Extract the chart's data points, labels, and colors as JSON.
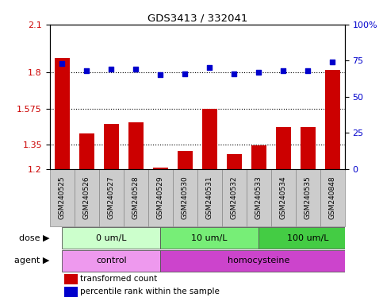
{
  "title": "GDS3413 / 332041",
  "samples": [
    "GSM240525",
    "GSM240526",
    "GSM240527",
    "GSM240528",
    "GSM240529",
    "GSM240530",
    "GSM240531",
    "GSM240532",
    "GSM240533",
    "GSM240534",
    "GSM240535",
    "GSM240848"
  ],
  "transformed_count": [
    1.89,
    1.42,
    1.48,
    1.49,
    1.21,
    1.31,
    1.575,
    1.29,
    1.345,
    1.46,
    1.46,
    1.815
  ],
  "percentile_rank": [
    73,
    68,
    69,
    69,
    65,
    66,
    70,
    66,
    67,
    68,
    68,
    74
  ],
  "ylim_left": [
    1.2,
    2.1
  ],
  "ylim_right": [
    0,
    100
  ],
  "yticks_left": [
    1.2,
    1.35,
    1.575,
    1.8,
    2.1
  ],
  "ytick_labels_left": [
    "1.2",
    "1.35",
    "1.575",
    "1.8",
    "2.1"
  ],
  "yticks_right": [
    0,
    25,
    50,
    75,
    100
  ],
  "ytick_labels_right": [
    "0",
    "25",
    "50",
    "75",
    "100%"
  ],
  "hlines": [
    1.8,
    1.575,
    1.35
  ],
  "bar_color": "#cc0000",
  "scatter_color": "#0000cc",
  "bar_width": 0.6,
  "dose_groups": [
    {
      "label": "0 um/L",
      "start": 0,
      "end": 4,
      "color": "#ccffcc"
    },
    {
      "label": "10 um/L",
      "start": 4,
      "end": 8,
      "color": "#77ee77"
    },
    {
      "label": "100 um/L",
      "start": 8,
      "end": 12,
      "color": "#44cc44"
    }
  ],
  "agent_groups": [
    {
      "label": "control",
      "start": 0,
      "end": 4,
      "color": "#ee99ee"
    },
    {
      "label": "homocysteine",
      "start": 4,
      "end": 12,
      "color": "#cc44cc"
    }
  ],
  "dose_label": "dose",
  "agent_label": "agent",
  "legend_bar_label": "transformed count",
  "legend_scatter_label": "percentile rank within the sample",
  "background_color": "#ffffff",
  "tick_label_color_left": "#cc0000",
  "tick_label_color_right": "#0000cc",
  "xtick_bg_color": "#cccccc",
  "spine_color": "#000000",
  "n_samples": 12
}
